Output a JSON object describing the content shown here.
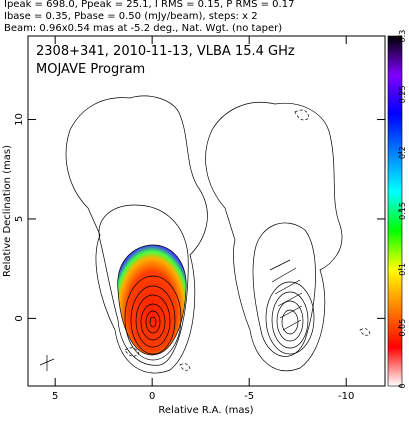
{
  "header": {
    "lines": [
      "Ipeak = 698.0, Ppeak = 25.1, I RMS = 0.15, P RMS = 0.17",
      "Ibase = 0.35, Pbase = 0.50 (mJy/beam), steps: x 2",
      "Beam: 0.96x0.54 mas at -5.2 deg., Nat. Wgt. (no taper)"
    ]
  },
  "chart_data": {
    "type": "contour-map",
    "title": "2308+341, 2010-11-13, VLBA 15.4 GHz",
    "subtitle": "MOJAVE Program",
    "x_label": "Relative R.A. (mas)",
    "y_label": "Relative Declination (mas)",
    "xlim": [
      6.4,
      -12
    ],
    "xticks": [
      5,
      0,
      -5,
      -10
    ],
    "ylim": [
      -3.4,
      14.2
    ],
    "yticks": [
      0,
      5,
      10
    ],
    "colorbar": {
      "lim": [
        0,
        0.3
      ],
      "ticks": [
        0,
        0.05,
        0.1,
        0.15,
        0.2,
        0.25,
        0.3
      ],
      "colors": [
        "#ffffff",
        "#ff0000",
        "#ff8000",
        "#ffff00",
        "#00ff00",
        "#00ffff",
        "#0080ff",
        "#0000ff",
        "#8000ff",
        "#000000"
      ]
    }
  }
}
